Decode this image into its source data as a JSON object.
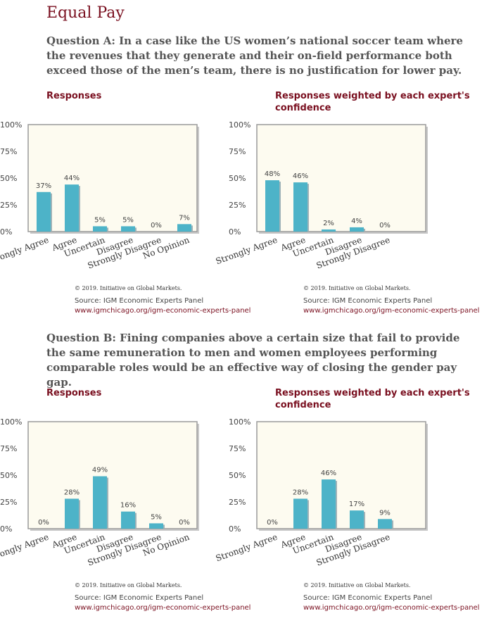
{
  "page": {
    "title": "Equal Pay"
  },
  "questions": [
    {
      "text": "Question A: In a case like the US women’s national soccer team where the revenues that they generate and their on-field performance both exceed those of the men’s team, there is no justification for lower pay.",
      "panels": [
        {
          "title": "Responses",
          "copyright": "© 2019. Initiative on Global Markets.",
          "source": "Source: IGM Economic Experts Panel",
          "url": "www.igmchicago.org/igm-economic-experts-panel",
          "chart_data": {
            "type": "bar",
            "title": "Responses",
            "categories": [
              "Strongly Agree",
              "Agree",
              "Uncertain",
              "Disagree",
              "Strongly Disagree",
              "No Opinion"
            ],
            "values": [
              37,
              44,
              5,
              5,
              0,
              7
            ],
            "value_labels": [
              "37%",
              "44%",
              "5%",
              "5%",
              "0%",
              "7%"
            ],
            "yticks": [
              "0%",
              "25%",
              "50%",
              "75%",
              "100%"
            ],
            "ylim": [
              0,
              100
            ],
            "bar_color": "#4db3c8",
            "plot_bg": "#fdfbf0"
          }
        },
        {
          "title": "Responses weighted by each expert's confidence",
          "copyright": "© 2019. Initiative on Global Markets.",
          "source": "Source: IGM Economic Experts Panel",
          "url": "www.igmchicago.org/igm-economic-experts-panel",
          "chart_data": {
            "type": "bar",
            "title": "Responses weighted by each expert's confidence",
            "categories": [
              "Strongly Agree",
              "Agree",
              "Uncertain",
              "Disagree",
              "Strongly Disagree"
            ],
            "values": [
              48,
              46,
              2,
              4,
              0
            ],
            "value_labels": [
              "48%",
              "46%",
              "2%",
              "4%",
              "0%"
            ],
            "yticks": [
              "0%",
              "25%",
              "50%",
              "75%",
              "100%"
            ],
            "ylim": [
              0,
              100
            ],
            "bar_color": "#4db3c8",
            "plot_bg": "#fdfbf0"
          }
        }
      ]
    },
    {
      "text": "Question B: Fining companies above a certain size that fail to provide the same remuneration to men and women employees performing comparable roles would be an effective way of closing the gender pay gap.",
      "panels": [
        {
          "title": "Responses",
          "copyright": "© 2019. Initiative on Global Markets.",
          "source": "Source: IGM Economic Experts Panel",
          "url": "www.igmchicago.org/igm-economic-experts-panel",
          "chart_data": {
            "type": "bar",
            "title": "Responses",
            "categories": [
              "Strongly Agree",
              "Agree",
              "Uncertain",
              "Disagree",
              "Strongly Disagree",
              "No Opinion"
            ],
            "values": [
              0,
              28,
              49,
              16,
              5,
              0
            ],
            "value_labels": [
              "0%",
              "28%",
              "49%",
              "16%",
              "5%",
              "0%"
            ],
            "yticks": [
              "0%",
              "25%",
              "50%",
              "75%",
              "100%"
            ],
            "ylim": [
              0,
              100
            ],
            "bar_color": "#4db3c8",
            "plot_bg": "#fdfbf0"
          }
        },
        {
          "title": "Responses weighted by each expert's confidence",
          "copyright": "© 2019. Initiative on Global Markets.",
          "source": "Source: IGM Economic Experts Panel",
          "url": "www.igmchicago.org/igm-economic-experts-panel",
          "chart_data": {
            "type": "bar",
            "title": "Responses weighted by each expert's confidence",
            "categories": [
              "Strongly Agree",
              "Agree",
              "Uncertain",
              "Disagree",
              "Strongly Disagree"
            ],
            "values": [
              0,
              28,
              46,
              17,
              9
            ],
            "value_labels": [
              "0%",
              "28%",
              "46%",
              "17%",
              "9%"
            ],
            "yticks": [
              "0%",
              "25%",
              "50%",
              "75%",
              "100%"
            ],
            "ylim": [
              0,
              100
            ],
            "bar_color": "#4db3c8",
            "plot_bg": "#fdfbf0"
          }
        }
      ]
    }
  ]
}
